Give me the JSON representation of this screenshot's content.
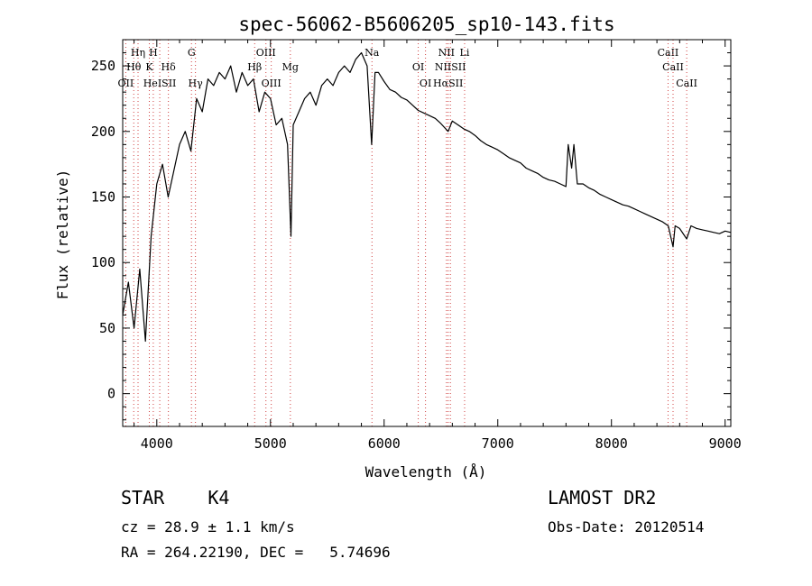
{
  "chart_data": {
    "type": "line",
    "title": "spec-56062-B5606205_sp10-143.fits",
    "xlabel": "Wavelength (Å)",
    "ylabel": "Flux (relative)",
    "xlim": [
      3700,
      9050
    ],
    "ylim": [
      -25,
      270
    ],
    "xticks": [
      4000,
      5000,
      6000,
      7000,
      8000,
      9000
    ],
    "yticks": [
      0,
      50,
      100,
      150,
      200,
      250
    ],
    "grid": false,
    "series": [
      {
        "x": [
          3700,
          3750,
          3800,
          3850,
          3900,
          3950,
          4000,
          4050,
          4100,
          4150,
          4200,
          4250,
          4300,
          4350,
          4400,
          4450,
          4500,
          4550,
          4600,
          4650,
          4700,
          4750,
          4800,
          4850,
          4900,
          4950,
          5000,
          5050,
          5100,
          5150,
          5180,
          5200,
          5250,
          5300,
          5350,
          5400,
          5450,
          5500,
          5550,
          5600,
          5650,
          5700,
          5750,
          5800,
          5850,
          5890,
          5920,
          5950,
          6000,
          6050,
          6100,
          6150,
          6200,
          6250,
          6300,
          6350,
          6400,
          6450,
          6500,
          6563,
          6600,
          6650,
          6700,
          6750,
          6800,
          6850,
          6900,
          6950,
          7000,
          7050,
          7100,
          7150,
          7200,
          7250,
          7300,
          7350,
          7400,
          7450,
          7500,
          7550,
          7600,
          7620,
          7650,
          7670,
          7700,
          7750,
          7800,
          7850,
          7900,
          7950,
          8000,
          8050,
          8100,
          8150,
          8200,
          8250,
          8300,
          8350,
          8400,
          8450,
          8500,
          8542,
          8560,
          8600,
          8662,
          8700,
          8750,
          8800,
          8850,
          8900,
          8950,
          9000,
          9050
        ],
        "y": [
          60,
          85,
          50,
          95,
          40,
          120,
          160,
          175,
          150,
          170,
          190,
          200,
          185,
          225,
          215,
          240,
          235,
          245,
          240,
          250,
          230,
          245,
          235,
          240,
          215,
          230,
          225,
          205,
          210,
          190,
          120,
          205,
          215,
          225,
          230,
          220,
          235,
          240,
          235,
          245,
          250,
          245,
          255,
          260,
          250,
          190,
          245,
          245,
          238,
          232,
          230,
          226,
          224,
          220,
          216,
          214,
          212,
          210,
          206,
          200,
          208,
          205,
          202,
          200,
          197,
          193,
          190,
          188,
          186,
          183,
          180,
          178,
          176,
          172,
          170,
          168,
          165,
          163,
          162,
          160,
          158,
          190,
          172,
          190,
          160,
          160,
          157,
          155,
          152,
          150,
          148,
          146,
          144,
          143,
          141,
          139,
          137,
          135,
          133,
          131,
          128,
          112,
          128,
          126,
          118,
          128,
          126,
          125,
          124,
          123,
          122,
          124,
          123
        ]
      }
    ],
    "lines": [
      {
        "label": "Hη",
        "wave": 3835,
        "row": 0
      },
      {
        "label": "H",
        "wave": 3969,
        "row": 0
      },
      {
        "label": "G",
        "wave": 4305,
        "row": 0
      },
      {
        "label": "OIII",
        "wave": 4960,
        "row": 0
      },
      {
        "label": "Na",
        "wave": 5893,
        "row": 0
      },
      {
        "label": "NII",
        "wave": 6548,
        "row": 0
      },
      {
        "label": "Li",
        "wave": 6708,
        "row": 0
      },
      {
        "label": "CaII",
        "wave": 8498,
        "row": 0
      },
      {
        "label": "Hθ",
        "wave": 3797,
        "row": 1
      },
      {
        "label": "K",
        "wave": 3934,
        "row": 1
      },
      {
        "label": "Hδ",
        "wave": 4102,
        "row": 1
      },
      {
        "label": "Hβ",
        "wave": 4861,
        "row": 1
      },
      {
        "label": "Mg",
        "wave": 5175,
        "row": 1
      },
      {
        "label": "OI",
        "wave": 6300,
        "row": 1
      },
      {
        "label": "NIISII",
        "wave": 6583,
        "row": 1
      },
      {
        "label": "CaII",
        "wave": 8542,
        "row": 1
      },
      {
        "label": "OII",
        "wave": 3727,
        "row": 2
      },
      {
        "label": "HeISII",
        "wave": 4026,
        "row": 2
      },
      {
        "label": "Hγ",
        "wave": 4340,
        "row": 2
      },
      {
        "label": "OIII",
        "wave": 5007,
        "row": 2
      },
      {
        "label": "OI",
        "wave": 6364,
        "row": 2
      },
      {
        "label": "HαSII",
        "wave": 6563,
        "row": 2
      },
      {
        "label": "CaII",
        "wave": 8662,
        "row": 2
      }
    ],
    "marker_color": "#d04040"
  },
  "info": {
    "classification": "STAR    K4",
    "survey": "LAMOST DR2",
    "cz": "cz = 28.9 ± 1.1 km/s",
    "obs_date": "Obs-Date: 20120514",
    "radec": "RA = 264.22190, DEC =   5.74696"
  }
}
